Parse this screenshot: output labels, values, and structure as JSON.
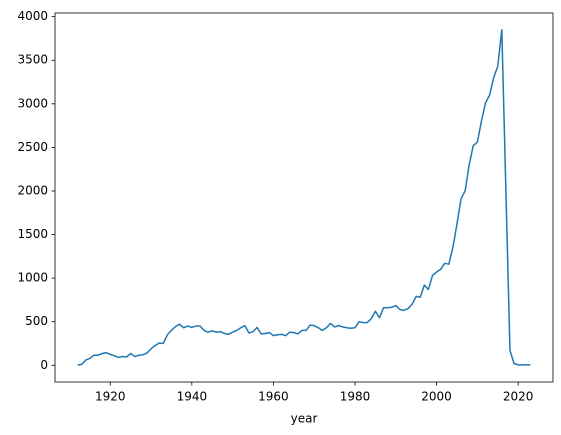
{
  "chart_data": {
    "type": "line",
    "x_label": "year",
    "x": [
      1912,
      1913,
      1914,
      1915,
      1916,
      1917,
      1918,
      1919,
      1920,
      1921,
      1922,
      1923,
      1924,
      1925,
      1926,
      1927,
      1928,
      1929,
      1930,
      1931,
      1932,
      1933,
      1934,
      1935,
      1936,
      1937,
      1938,
      1939,
      1940,
      1941,
      1942,
      1943,
      1944,
      1945,
      1946,
      1947,
      1948,
      1949,
      1950,
      1951,
      1952,
      1953,
      1954,
      1955,
      1956,
      1957,
      1958,
      1959,
      1960,
      1961,
      1962,
      1963,
      1964,
      1965,
      1966,
      1967,
      1968,
      1969,
      1970,
      1971,
      1972,
      1973,
      1974,
      1975,
      1976,
      1977,
      1978,
      1979,
      1980,
      1981,
      1982,
      1983,
      1984,
      1985,
      1986,
      1987,
      1988,
      1989,
      1990,
      1991,
      1992,
      1993,
      1994,
      1995,
      1996,
      1997,
      1998,
      1999,
      2000,
      2001,
      2002,
      2003,
      2004,
      2005,
      2006,
      2007,
      2008,
      2009,
      2010,
      2011,
      2012,
      2013,
      2014,
      2015,
      2016,
      2017,
      2018,
      2019,
      2020,
      2021,
      2022,
      2023
    ],
    "values": [
      3,
      10,
      60,
      80,
      115,
      115,
      135,
      145,
      125,
      110,
      90,
      100,
      95,
      135,
      100,
      115,
      120,
      140,
      190,
      225,
      255,
      250,
      350,
      400,
      445,
      470,
      430,
      450,
      435,
      450,
      450,
      400,
      380,
      395,
      380,
      385,
      365,
      355,
      380,
      400,
      430,
      455,
      370,
      385,
      435,
      360,
      365,
      375,
      340,
      350,
      355,
      340,
      380,
      375,
      360,
      400,
      400,
      460,
      455,
      430,
      400,
      430,
      480,
      440,
      455,
      440,
      430,
      425,
      430,
      500,
      490,
      490,
      535,
      620,
      545,
      660,
      660,
      665,
      685,
      640,
      630,
      650,
      700,
      790,
      780,
      920,
      870,
      1030,
      1070,
      1100,
      1170,
      1160,
      1350,
      1620,
      1910,
      2000,
      2300,
      2520,
      2560,
      2800,
      3010,
      3100,
      3300,
      3430,
      3850,
      2000,
      170,
      20,
      5,
      5,
      5,
      5
    ],
    "color": "#1f77b4",
    "xlim": [
      1906.45,
      2028.55
    ],
    "xticks": [
      1920,
      1940,
      1960,
      1980,
      2000,
      2020
    ],
    "ylim": [
      -192,
      4042
    ],
    "yticks": [
      0,
      500,
      1000,
      1500,
      2000,
      2500,
      3000,
      3500,
      4000
    ],
    "grid": false
  }
}
